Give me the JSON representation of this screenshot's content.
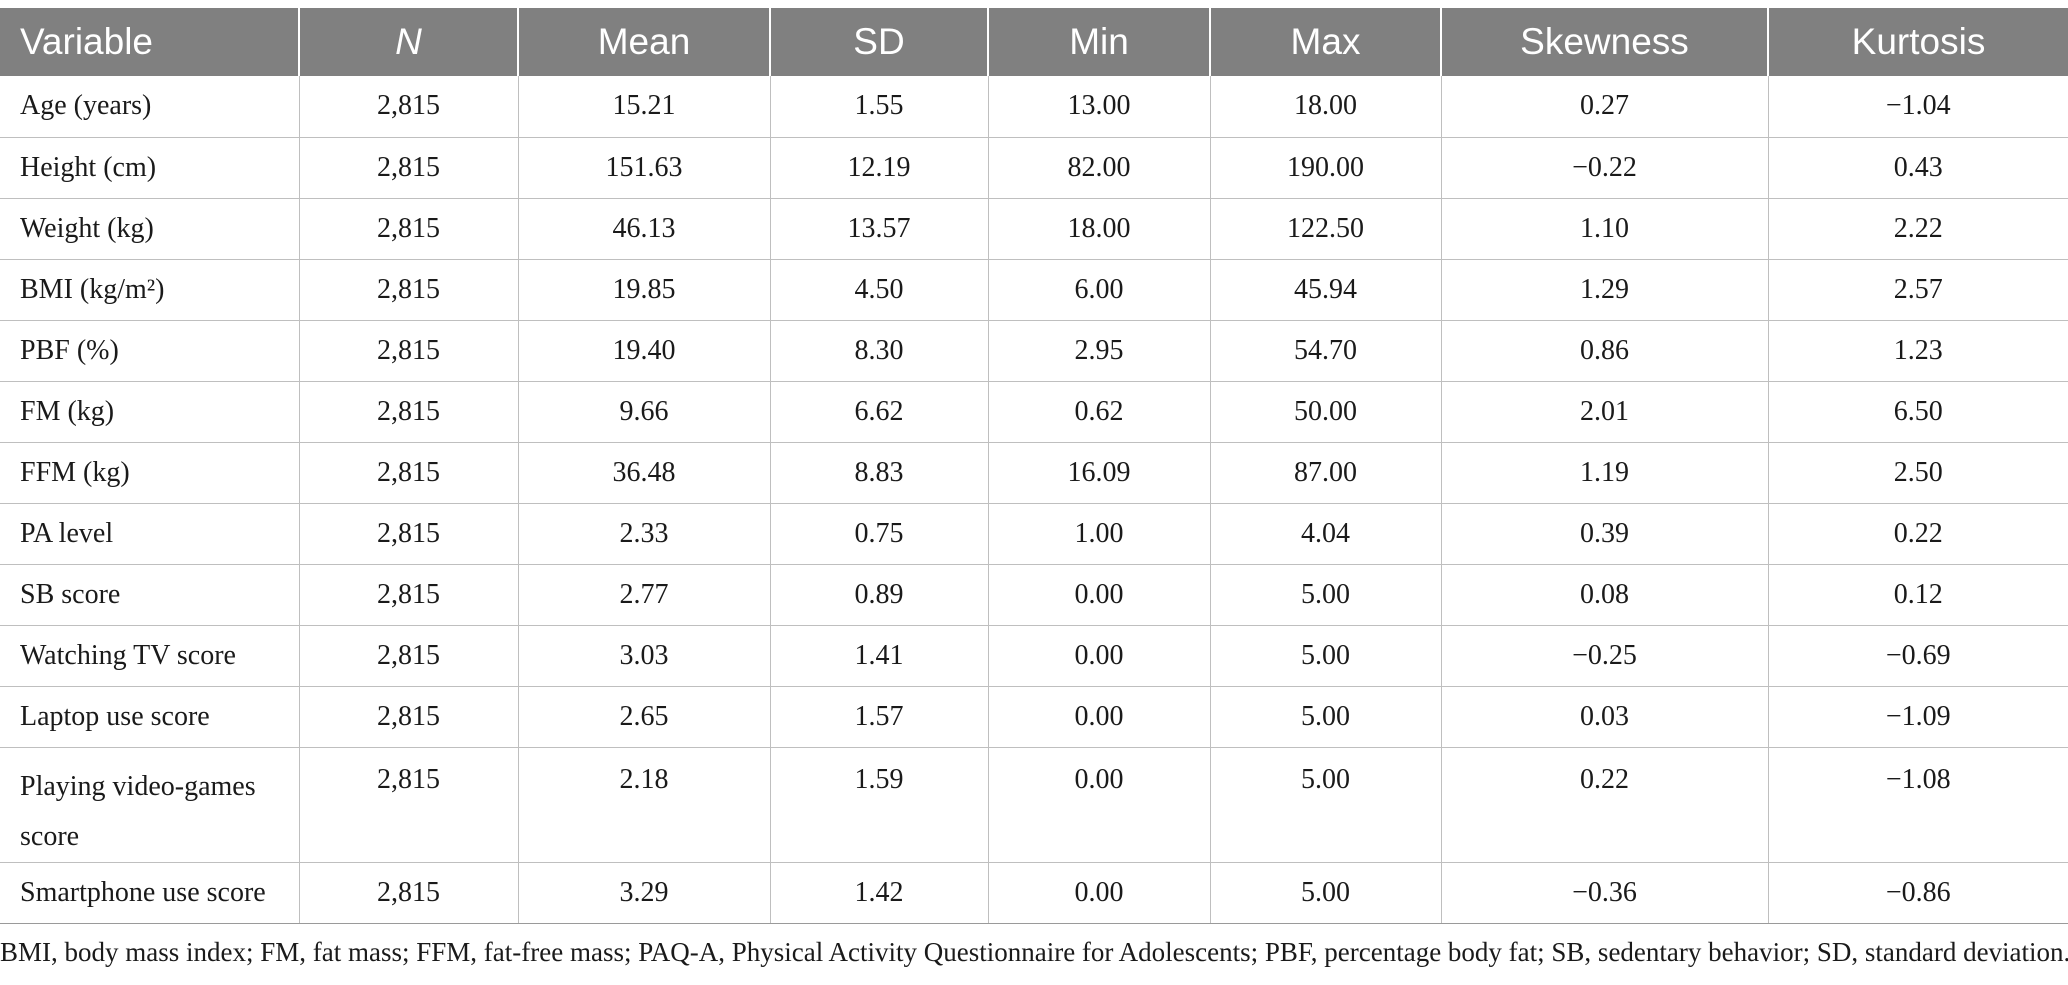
{
  "table": {
    "headers": [
      "Variable",
      "N",
      "Mean",
      "SD",
      "Min",
      "Max",
      "Skewness",
      "Kurtosis"
    ],
    "rows": [
      [
        "Age (years)",
        "2,815",
        "15.21",
        "1.55",
        "13.00",
        "18.00",
        "0.27",
        "−1.04"
      ],
      [
        "Height (cm)",
        "2,815",
        "151.63",
        "12.19",
        "82.00",
        "190.00",
        "−0.22",
        "0.43"
      ],
      [
        "Weight (kg)",
        "2,815",
        "46.13",
        "13.57",
        "18.00",
        "122.50",
        "1.10",
        "2.22"
      ],
      [
        "BMI (kg/m²)",
        "2,815",
        "19.85",
        "4.50",
        "6.00",
        "45.94",
        "1.29",
        "2.57"
      ],
      [
        "PBF (%)",
        "2,815",
        "19.40",
        "8.30",
        "2.95",
        "54.70",
        "0.86",
        "1.23"
      ],
      [
        "FM (kg)",
        "2,815",
        "9.66",
        "6.62",
        "0.62",
        "50.00",
        "2.01",
        "6.50"
      ],
      [
        "FFM (kg)",
        "2,815",
        "36.48",
        "8.83",
        "16.09",
        "87.00",
        "1.19",
        "2.50"
      ],
      [
        "PA level",
        "2,815",
        "2.33",
        "0.75",
        "1.00",
        "4.04",
        "0.39",
        "0.22"
      ],
      [
        "SB score",
        "2,815",
        "2.77",
        "0.89",
        "0.00",
        "5.00",
        "0.08",
        "0.12"
      ],
      [
        "Watching TV score",
        "2,815",
        "3.03",
        "1.41",
        "0.00",
        "5.00",
        "−0.25",
        "−0.69"
      ],
      [
        "Laptop use score",
        "2,815",
        "2.65",
        "1.57",
        "0.00",
        "5.00",
        "0.03",
        "−1.09"
      ],
      [
        "Playing video-games score",
        "2,815",
        "2.18",
        "1.59",
        "0.00",
        "5.00",
        "0.22",
        "−1.08"
      ],
      [
        "Smartphone use score",
        "2,815",
        "3.29",
        "1.42",
        "0.00",
        "5.00",
        "−0.36",
        "−0.86"
      ]
    ]
  },
  "footnote": "BMI, body mass index; FM, fat mass; FFM, fat-free mass; PAQ-A, Physical Activity Questionnaire for Adolescents; PBF, percentage body fat; SB, sedentary behavior; SD, standard deviation."
}
